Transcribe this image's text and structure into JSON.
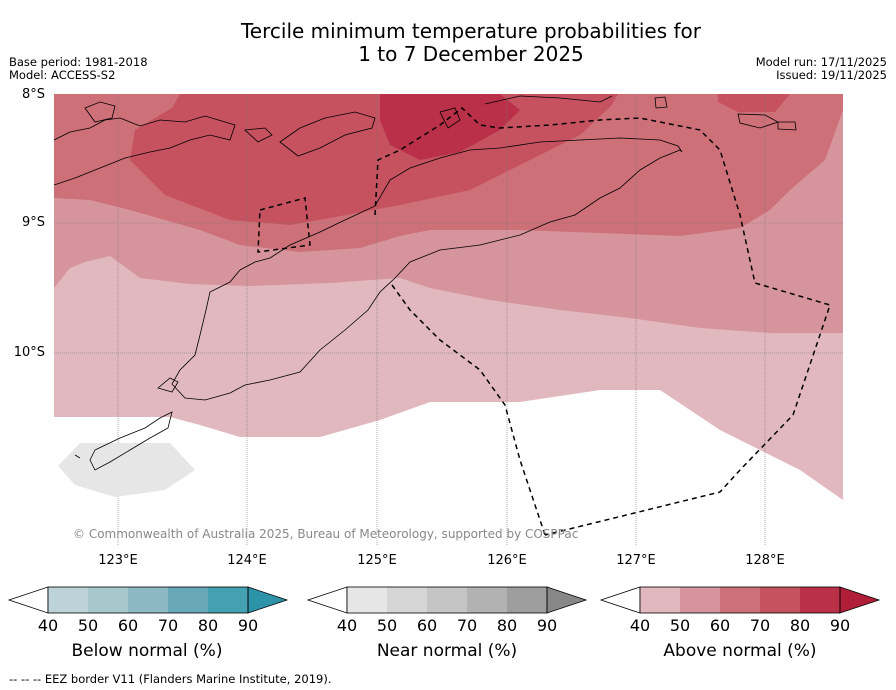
{
  "title_line1": "Tercile minimum temperature probabilities for",
  "title_line2": "1 to 7 December 2025",
  "base_period": "Base period: 1981-2018",
  "model": "Model: ACCESS-S2",
  "model_run": "Model run: 17/11/2025",
  "issued": "Issued: 19/11/2025",
  "latitude_labels": [
    "8°S",
    "9°S",
    "10°S"
  ],
  "longitude_labels": [
    "123°E",
    "124°E",
    "125°E",
    "126°E",
    "127°E",
    "128°E"
  ],
  "copyright": "© Commonwealth of Australia 2025, Bureau of Meteorology, supported by COSPPac",
  "colorbars": [
    {
      "label": "Below normal (%)",
      "ticks": [
        "40",
        "50",
        "60",
        "70",
        "80",
        "90"
      ],
      "colors": [
        "#ffffff",
        "#bcd3da",
        "#a6c7cc",
        "#8bb8c2",
        "#69a8b7",
        "#45a0b2",
        "#2d93a8"
      ]
    },
    {
      "label": "Near normal (%)",
      "ticks": [
        "40",
        "50",
        "60",
        "70",
        "80",
        "90"
      ],
      "colors": [
        "#ffffff",
        "#e6e6e6",
        "#d6d6d6",
        "#c5c5c5",
        "#b2b2b2",
        "#9e9e9e",
        "#878787"
      ]
    },
    {
      "label": "Above normal (%)",
      "ticks": [
        "40",
        "50",
        "60",
        "70",
        "80",
        "90"
      ],
      "colors": [
        "#ffffff",
        "#e1b8bd",
        "#d6959c",
        "#cd7077",
        "#c6525f",
        "#ba3048",
        "#b01e3a"
      ]
    }
  ],
  "footer": "--  --  -- EEZ border V11 (Flanders Marine Institute, 2019)."
}
